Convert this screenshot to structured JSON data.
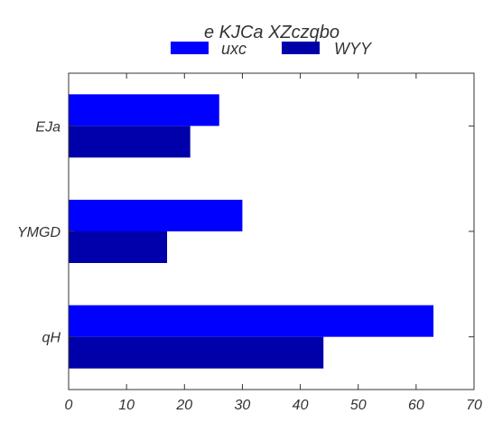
{
  "chart_data": {
    "type": "bar",
    "orientation": "horizontal",
    "title": "e KJCa XZczqbo",
    "categories": [
      "EJa",
      "YMGD",
      "qH"
    ],
    "series": [
      {
        "name": "uxc",
        "values": [
          26,
          30,
          63
        ],
        "color": "#0000ff"
      },
      {
        "name": "WYY",
        "values": [
          21,
          17,
          44
        ],
        "color": "#0000aa"
      }
    ],
    "xlim": [
      0,
      70
    ],
    "xticks": [
      0,
      10,
      20,
      30,
      40,
      50,
      60,
      70
    ],
    "xlabel": "",
    "ylabel": "",
    "legend_position": "top-center",
    "grid": false
  }
}
